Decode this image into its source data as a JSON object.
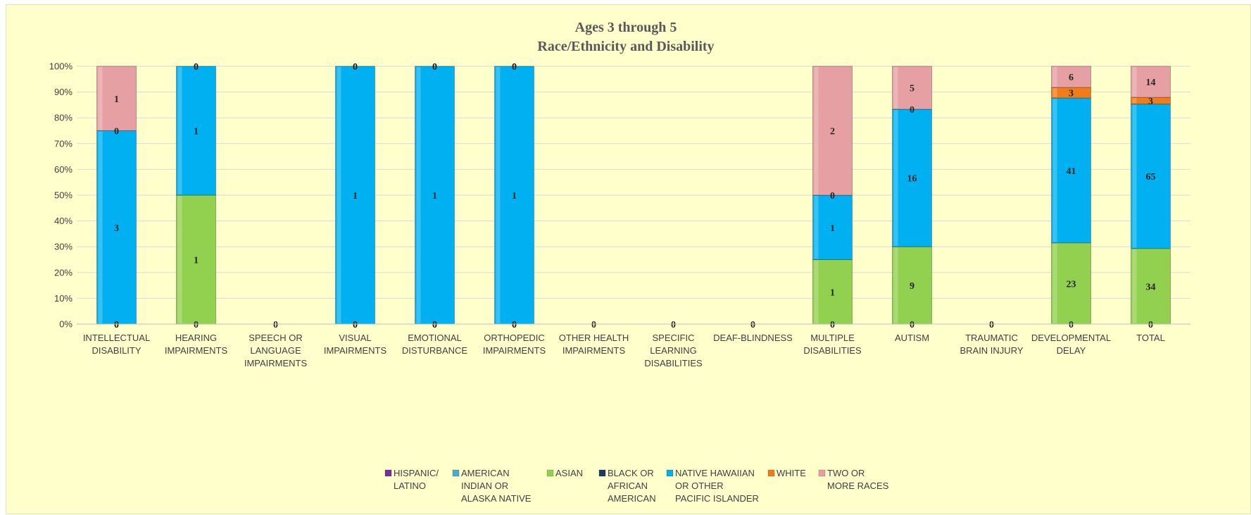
{
  "chart_data": {
    "type": "bar",
    "stacked": "percent",
    "title": [
      "Ages 3 through 5",
      "Race/Ethnicity and Disability"
    ],
    "xlabel": "",
    "ylabel": "",
    "ylim": [
      0,
      100
    ],
    "y_ticks": [
      "0%",
      "10%",
      "20%",
      "30%",
      "40%",
      "50%",
      "60%",
      "70%",
      "80%",
      "90%",
      "100%"
    ],
    "grid": true,
    "legend_position": "bottom",
    "categories": [
      [
        "INTELLECTUAL",
        "DISABILITY"
      ],
      [
        "HEARING",
        "IMPAIRMENTS"
      ],
      [
        "SPEECH OR",
        "LANGUAGE",
        "IMPAIRMENTS"
      ],
      [
        "VISUAL",
        "IMPAIRMENTS"
      ],
      [
        "EMOTIONAL",
        "DISTURBANCE"
      ],
      [
        "ORTHOPEDIC",
        "IMPAIRMENTS"
      ],
      [
        "OTHER HEALTH",
        "IMPAIRMENTS"
      ],
      [
        "SPECIFIC",
        "LEARNING",
        "DISABILITIES"
      ],
      [
        "DEAF-BLINDNESS"
      ],
      [
        "MULTIPLE",
        "DISABILITIES"
      ],
      [
        "AUTISM"
      ],
      [
        "TRAUMATIC",
        "BRAIN INJURY"
      ],
      [
        "DEVELOPMENTAL",
        "DELAY"
      ],
      [
        "TOTAL"
      ]
    ],
    "series": [
      {
        "name": [
          "HISPANIC/",
          "LATINO"
        ],
        "color": "#7030a0",
        "values": [
          0,
          0,
          0,
          0,
          0,
          0,
          0,
          0,
          0,
          0,
          0,
          0,
          0,
          0
        ]
      },
      {
        "name": [
          "AMERICAN",
          "INDIAN OR",
          "ALASKA NATIVE"
        ],
        "color": "#4bacc6",
        "values": [
          0,
          0,
          0,
          0,
          0,
          0,
          0,
          0,
          0,
          0,
          0,
          0,
          0,
          0
        ]
      },
      {
        "name": [
          "ASIAN"
        ],
        "color": "#92d050",
        "values": [
          0,
          1,
          0,
          0,
          0,
          0,
          0,
          0,
          0,
          1,
          9,
          0,
          23,
          34
        ]
      },
      {
        "name": [
          "BLACK OR",
          "AFRICAN",
          "AMERICAN"
        ],
        "color": "#1f3864",
        "values": [
          0,
          0,
          0,
          0,
          0,
          0,
          0,
          0,
          0,
          0,
          0,
          0,
          0,
          0
        ]
      },
      {
        "name": [
          "NATIVE HAWAIIAN",
          "OR OTHER",
          "PACIFIC ISLANDER"
        ],
        "color": "#00b0f0",
        "values": [
          3,
          1,
          0,
          1,
          1,
          1,
          0,
          0,
          0,
          1,
          16,
          0,
          41,
          65
        ]
      },
      {
        "name": [
          "WHITE"
        ],
        "color": "#f07c1a",
        "values": [
          0,
          0,
          0,
          0,
          0,
          0,
          0,
          0,
          0,
          0,
          0,
          0,
          3,
          3
        ]
      },
      {
        "name": [
          "TWO OR",
          "MORE RACES"
        ],
        "color": "#e6a0a4",
        "values": [
          1,
          0,
          0,
          0,
          0,
          0,
          0,
          0,
          0,
          2,
          5,
          0,
          6,
          14
        ]
      }
    ]
  }
}
